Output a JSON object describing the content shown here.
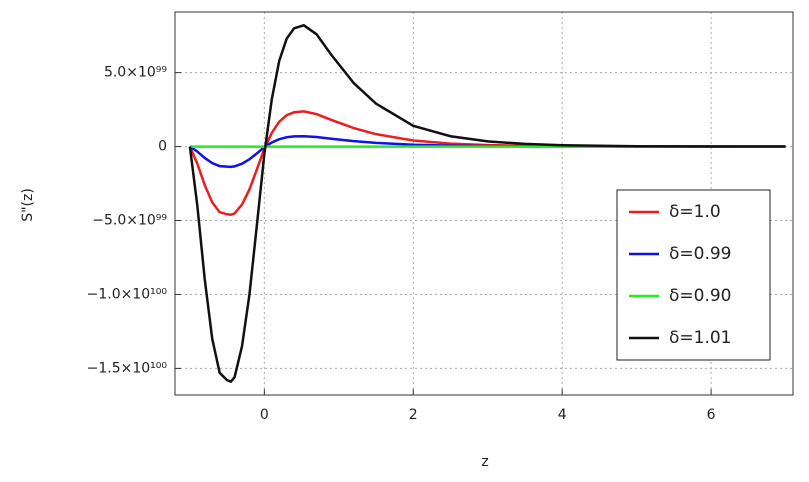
{
  "chart_data": {
    "type": "line",
    "x_label": "z",
    "y_label": "S\"(z)",
    "x": [
      -1,
      -0.9,
      -0.8,
      -0.7,
      -0.6,
      -0.5,
      -0.45,
      -0.4,
      -0.3,
      -0.2,
      -0.1,
      0,
      0.1,
      0.2,
      0.3,
      0.4,
      0.53,
      0.7,
      0.9,
      1.2,
      1.5,
      2,
      2.5,
      3,
      3.5,
      4,
      5,
      6,
      7
    ],
    "series": [
      {
        "name": "δ=1.0",
        "color": "#ee1c1c",
        "values": [
          0,
          -1.16e+99,
          -2.61e+99,
          -3.77e+99,
          -4.44e+99,
          -4.58e+99,
          -4.61e+99,
          -4.52e+99,
          -3.92e+99,
          -2.9e+99,
          -1.54e+99,
          -1.5e+98,
          9.3e+98,
          1.68e+99,
          2.12e+99,
          2.32e+99,
          2.38e+99,
          2.2e+99,
          1.8e+99,
          1.25e+99,
          8.4e+98,
          4.1e+98,
          2e+98,
          1e+98,
          5e+97,
          2.6e+97,
          6e+96,
          1.5e+96,
          3e+95
        ]
      },
      {
        "name": "δ=0.99",
        "color": "#1010ee",
        "values": [
          0,
          -3.4e+98,
          -7.7e+98,
          -1.12e+99,
          -1.32e+99,
          -1.36e+99,
          -1.37e+99,
          -1.34e+99,
          -1.16e+99,
          -8.6e+98,
          -4.6e+98,
          -4e+97,
          2.8e+98,
          5e+98,
          6.3e+98,
          6.9e+98,
          7e+98,
          6.5e+98,
          5.3e+98,
          3.7e+98,
          2.5e+98,
          1.2e+98,
          6e+97,
          3e+97,
          1.5e+97,
          8e+96,
          2e+96,
          4e+95,
          1e+95
        ]
      },
      {
        "name": "δ=0.90",
        "color": "#22ee22",
        "values": [
          0,
          0,
          0,
          0,
          0,
          0,
          0,
          0,
          0,
          0,
          0,
          0,
          0,
          0,
          0,
          0,
          0,
          0,
          0,
          0,
          0,
          0,
          0,
          0,
          0,
          0,
          0,
          0,
          0
        ]
      },
      {
        "name": "δ=1.01",
        "color": "#111111",
        "values": [
          0,
          -4e+99,
          -9e+99,
          -1.3e+100,
          -1.53e+100,
          -1.58e+100,
          -1.59e+100,
          -1.56e+100,
          -1.35e+100,
          -1e+100,
          -5.3e+99,
          -5e+98,
          3.2e+99,
          5.8e+99,
          7.3e+99,
          8e+99,
          8.2e+99,
          7.6e+99,
          6.2e+99,
          4.3e+99,
          2.9e+99,
          1.4e+99,
          7e+98,
          3.5e+98,
          1.8e+98,
          9e+97,
          2e+97,
          5e+96,
          1e+96
        ]
      }
    ],
    "xlim": [
      -1.2,
      7.1
    ],
    "ylim": [
      -1.68e+100,
      9.1e+99
    ],
    "xticks": [
      0,
      2,
      4,
      6
    ],
    "yticks": [
      {
        "value": 5e+99,
        "label": "5.0×10⁹⁹"
      },
      0,
      {
        "value": -5e+99,
        "label": "−5.0×10⁹⁹"
      },
      {
        "value": -1e+100,
        "label": "−1.0×10¹⁰⁰"
      },
      {
        "value": -1.5e+100,
        "label": "−1.5×10¹⁰⁰"
      }
    ],
    "grid": true,
    "legend": "lower-right"
  }
}
